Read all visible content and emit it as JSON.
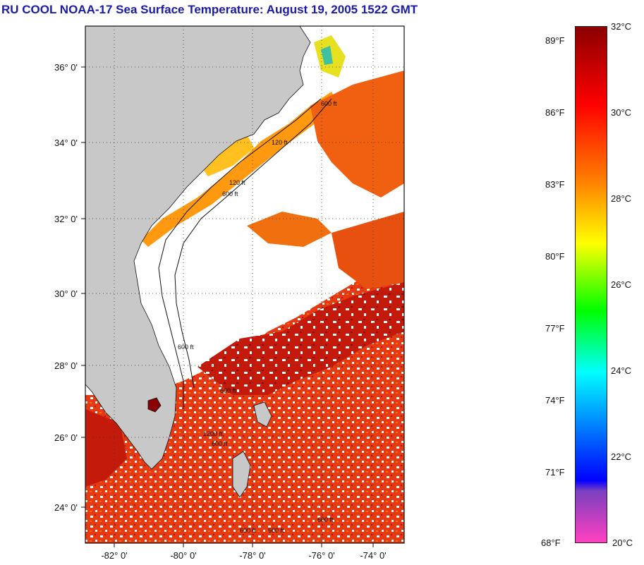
{
  "title": "RU COOL  NOAA-17  Sea Surface Temperature:  August 19, 2005 1522 GMT",
  "map": {
    "lat_labels": [
      "36° 0'",
      "34° 0'",
      "32° 0'",
      "30° 0'",
      "28° 0'",
      "26° 0'",
      "24° 0'"
    ],
    "lon_labels": [
      "-82° 0'",
      "-80° 0'",
      "-78° 0'",
      "-76° 0'",
      "-74° 0'"
    ],
    "contour_labels": [
      "600 ft",
      "120 ft",
      "600 ft",
      "120 ft",
      "600 ft",
      "600 ft",
      "600 ft",
      "1200 ft",
      "600 ft",
      "600 ft",
      "600 ft"
    ]
  },
  "colorbar": {
    "celsius_labels": [
      "32°C",
      "30°C",
      "28°C",
      "26°C",
      "24°C",
      "22°C",
      "20°C"
    ],
    "fahrenheit_labels": [
      "89°F",
      "86°F",
      "83°F",
      "80°F",
      "77°F",
      "74°F",
      "71°F",
      "68°F"
    ],
    "colors": [
      "#8b0000",
      "#ff0000",
      "#ff8000",
      "#ffff00",
      "#00ff00",
      "#00ffff",
      "#0000ff",
      "#ff40c0"
    ]
  },
  "colors": {
    "title": "#1a1aa8",
    "land": "#c8c8c8",
    "cloud": "#ffffff",
    "warm_water": "#e83a10"
  }
}
